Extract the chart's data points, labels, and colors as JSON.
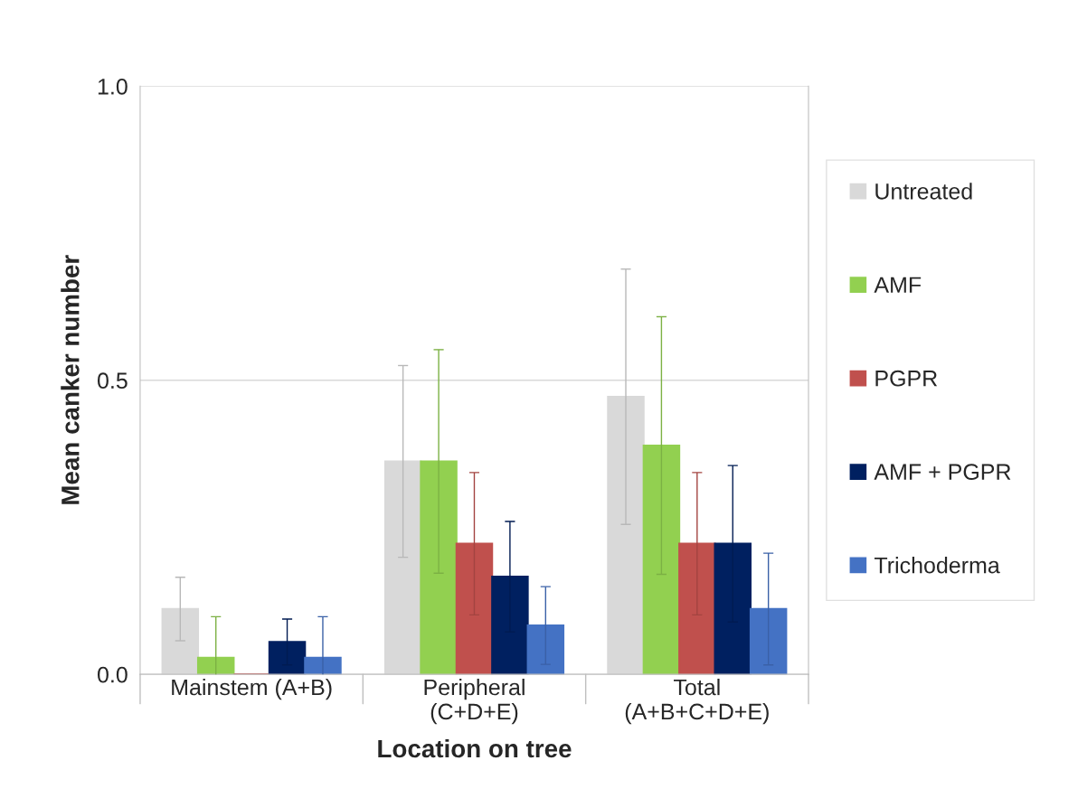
{
  "chart_data": {
    "type": "bar",
    "xlabel": "Location on tree",
    "ylabel": "Mean canker number",
    "categories": [
      "Mainstem (A+B)",
      "Peripheral\n(C+D+E)",
      "Total\n(A+B+C+D+E)"
    ],
    "series": [
      {
        "name": "Untreated",
        "color": "#d9d9d9",
        "values": [
          0.111,
          0.362,
          0.472
        ],
        "errors": [
          0.054,
          0.163,
          0.217
        ]
      },
      {
        "name": "AMF",
        "color": "#92d050",
        "values": [
          0.028,
          0.362,
          0.389
        ],
        "errors": [
          0.07,
          0.19,
          0.219
        ]
      },
      {
        "name": "PGPR",
        "color": "#c0504d",
        "values": [
          0,
          0.222,
          0.222
        ],
        "errors": [
          null,
          0.121,
          0.121
        ]
      },
      {
        "name": "AMF + PGPR",
        "color": "#002060",
        "values": [
          0.055,
          0.166,
          0.222
        ],
        "errors": [
          0.039,
          0.094,
          0.133
        ]
      },
      {
        "name": "Trichoderma",
        "color": "#4472c4",
        "values": [
          0.028,
          0.083,
          0.111
        ],
        "errors": [
          0.07,
          0.066,
          0.095
        ]
      }
    ],
    "ylim": [
      0,
      1
    ],
    "yticks": [
      {
        "value": 0,
        "label": "0.0"
      },
      {
        "value": 0.5,
        "label": "0.5"
      },
      {
        "value": 1,
        "label": "1.0"
      }
    ],
    "grid": "y",
    "legend": "right"
  }
}
